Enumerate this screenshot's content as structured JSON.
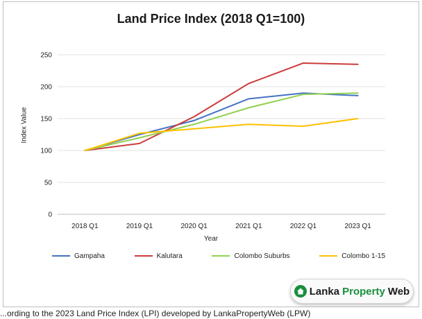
{
  "chart_data": {
    "type": "line",
    "title": "Land Price Index (2018 Q1=100)",
    "xlabel": "Year",
    "ylabel": "Index Value",
    "categories": [
      "2018 Q1",
      "2019 Q1",
      "2020 Q1",
      "2021 Q1",
      "2022 Q1",
      "2023 Q1"
    ],
    "ylim": [
      0,
      250
    ],
    "yticks": [
      0,
      50,
      100,
      150,
      200,
      250
    ],
    "grid": true,
    "legend_position": "bottom",
    "series": [
      {
        "name": "Gampaha",
        "color": "#4472c4",
        "values": [
          100,
          125,
          147,
          181,
          190,
          186
        ]
      },
      {
        "name": "Kalutara",
        "color": "#cc3b3b",
        "values": [
          100,
          111,
          153,
          205,
          237,
          235
        ]
      },
      {
        "name": "Colombo Suburbs",
        "color": "#92d050",
        "values": [
          100,
          120,
          141,
          167,
          188,
          190
        ]
      },
      {
        "name": "Colombo 1-15",
        "color": "#ffc000",
        "values": [
          100,
          127,
          134,
          141,
          138,
          150
        ]
      }
    ]
  },
  "logo": {
    "lanka": "Lanka",
    "property": "Property",
    "web": "Web"
  },
  "bottom_text": "...ording to the 2023 Land Price Index (LPI) developed by LankaPropertyWeb (LPW)"
}
